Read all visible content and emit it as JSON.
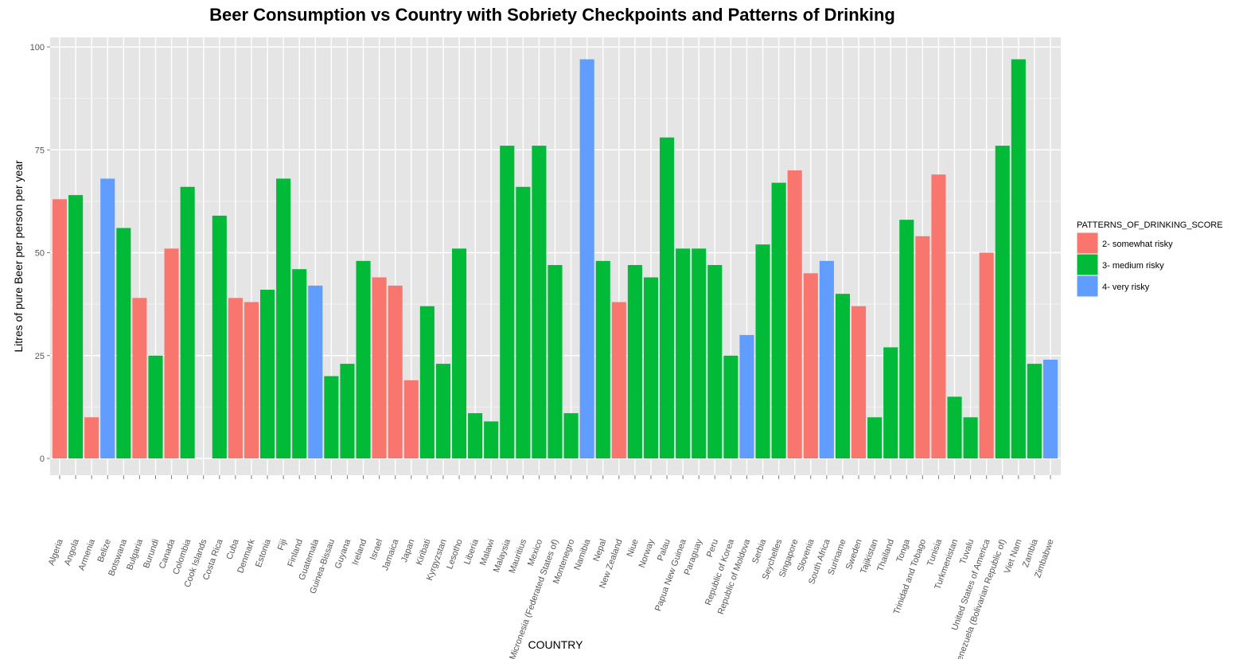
{
  "chart_data": {
    "type": "bar",
    "title": "Beer Consumption vs Country with Sobriety Checkpoints and Patterns of Drinking",
    "xlabel": "COUNTRY",
    "ylabel": "Litres of pure Beer per person per year",
    "ylim": [
      0,
      105
    ],
    "yticks": [
      0,
      25,
      50,
      75,
      100
    ],
    "grid": true,
    "legend": {
      "title": "PATTERNS_OF_DRINKING_SCORE",
      "position": "right",
      "entries": [
        {
          "label": "2- somewhat risky",
          "color": "#F8766D"
        },
        {
          "label": "3- medium risky",
          "color": "#00BA38"
        },
        {
          "label": "4- very risky",
          "color": "#619CFF"
        }
      ]
    },
    "categories": [
      "Algeria",
      "Angola",
      "Armenia",
      "Belize",
      "Botswana",
      "Bulgaria",
      "Burundi",
      "Canada",
      "Colombia",
      "Cook Islands",
      "Costa Rica",
      "Cuba",
      "Denmark",
      "Estonia",
      "Fiji",
      "Finland",
      "Guatemala",
      "Guinea-Bissau",
      "Guyana",
      "Ireland",
      "Israel",
      "Jamaica",
      "Japan",
      "Kiribati",
      "Kyrgyzstan",
      "Lesotho",
      "Liberia",
      "Malawi",
      "Malaysia",
      "Mauritius",
      "Mexico",
      "Micronesia (Federated States of)",
      "Montenegro",
      "Namibia",
      "Nepal",
      "New Zealand",
      "Niue",
      "Norway",
      "Palau",
      "Papua New Guinea",
      "Paraguay",
      "Peru",
      "Republic of Korea",
      "Republic of Moldova",
      "Serbia",
      "Seychelles",
      "Singapore",
      "Slovenia",
      "South Africa",
      "Suriname",
      "Sweden",
      "Tajikistan",
      "Thailand",
      "Tonga",
      "Trinidad and Tobago",
      "Tunisia",
      "Turkmenistan",
      "Tuvalu",
      "United States of America",
      "Venezuela (Bolivarian Republic of)",
      "Viet Nam",
      "Zambia",
      "Zimbabwe"
    ],
    "values": [
      63,
      64,
      10,
      68,
      56,
      39,
      25,
      51,
      66,
      null,
      59,
      39,
      38,
      41,
      68,
      46,
      42,
      20,
      23,
      48,
      44,
      42,
      19,
      37,
      23,
      51,
      11,
      9,
      76,
      66,
      76,
      47,
      11,
      97,
      48,
      38,
      47,
      44,
      78,
      51,
      51,
      47,
      25,
      30,
      52,
      67,
      70,
      45,
      48,
      40,
      37,
      10,
      27,
      58,
      54,
      69,
      15,
      10,
      50,
      76,
      97,
      23,
      24
    ],
    "series_category": [
      2,
      3,
      2,
      4,
      3,
      2,
      3,
      2,
      3,
      null,
      3,
      2,
      2,
      3,
      3,
      3,
      4,
      3,
      3,
      3,
      2,
      2,
      2,
      3,
      3,
      3,
      3,
      3,
      3,
      3,
      3,
      3,
      3,
      4,
      3,
      2,
      3,
      3,
      3,
      3,
      3,
      3,
      3,
      4,
      3,
      3,
      2,
      2,
      4,
      3,
      2,
      3,
      3,
      3,
      2,
      2,
      3,
      3,
      2,
      3,
      3,
      3,
      4
    ],
    "colors": {
      "2": "#F8766D",
      "3": "#00BA38",
      "4": "#619CFF"
    },
    "panel_background": "#E5E5E5",
    "grid_color": "#FFFFFF"
  }
}
